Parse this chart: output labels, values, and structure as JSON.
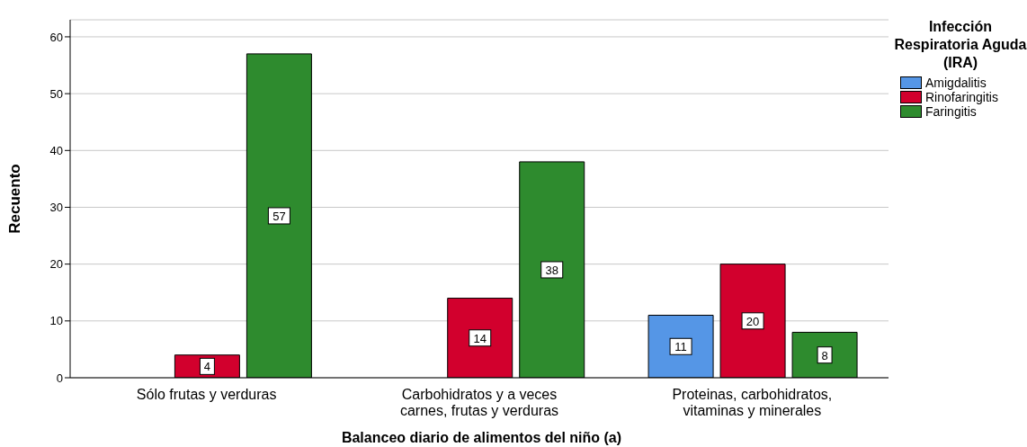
{
  "chart_data": {
    "type": "bar",
    "xlabel": "Balanceo diario de alimentos del niño (a)",
    "ylabel": "Recuento",
    "legend_title": "Infección Respiratoria Aguda (IRA)",
    "categories": [
      "Sólo frutas y verduras",
      "Carbohidratos y a veces carnes, frutas y verduras",
      "Proteinas, carbohidratos, vitaminas y minerales"
    ],
    "series": [
      {
        "name": "Amigdalitis",
        "color": "#5596e6",
        "values": [
          null,
          null,
          11
        ]
      },
      {
        "name": "Rinofaringitis",
        "color": "#d2002d",
        "values": [
          4,
          14,
          20
        ]
      },
      {
        "name": "Faringitis",
        "color": "#2e8b2e",
        "values": [
          57,
          38,
          8
        ]
      }
    ],
    "ylim": [
      0,
      63
    ],
    "yticks": [
      0,
      10,
      20,
      30,
      40,
      50,
      60
    ],
    "grid": "y",
    "legend": "top right",
    "data_labels": true
  }
}
